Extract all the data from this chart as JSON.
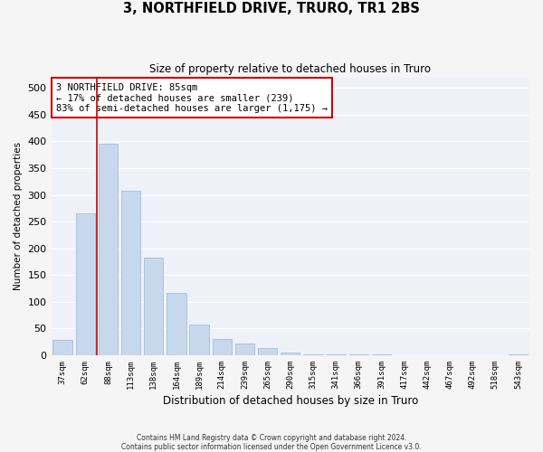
{
  "title": "3, NORTHFIELD DRIVE, TRURO, TR1 2BS",
  "subtitle": "Size of property relative to detached houses in Truro",
  "xlabel": "Distribution of detached houses by size in Truro",
  "ylabel": "Number of detached properties",
  "bar_color": "#c8d8ec",
  "bar_edge_color": "#9ab5d5",
  "background_color": "#eef2f8",
  "fig_background_color": "#f5f5f5",
  "grid_color": "#ffffff",
  "categories": [
    "37sqm",
    "62sqm",
    "88sqm",
    "113sqm",
    "138sqm",
    "164sqm",
    "189sqm",
    "214sqm",
    "239sqm",
    "265sqm",
    "290sqm",
    "315sqm",
    "341sqm",
    "366sqm",
    "391sqm",
    "417sqm",
    "442sqm",
    "467sqm",
    "492sqm",
    "518sqm",
    "543sqm"
  ],
  "values": [
    28,
    265,
    396,
    308,
    182,
    116,
    58,
    30,
    22,
    13,
    5,
    2,
    1,
    1,
    1,
    0,
    0,
    0,
    0,
    0,
    2
  ],
  "property_line_color": "#cc0000",
  "annotation_text": "3 NORTHFIELD DRIVE: 85sqm\n← 17% of detached houses are smaller (239)\n83% of semi-detached houses are larger (1,175) →",
  "annotation_box_color": "#cc0000",
  "ylim": [
    0,
    520
  ],
  "yticks": [
    0,
    50,
    100,
    150,
    200,
    250,
    300,
    350,
    400,
    450,
    500
  ],
  "footnote": "Contains HM Land Registry data © Crown copyright and database right 2024.\nContains public sector information licensed under the Open Government Licence v3.0."
}
